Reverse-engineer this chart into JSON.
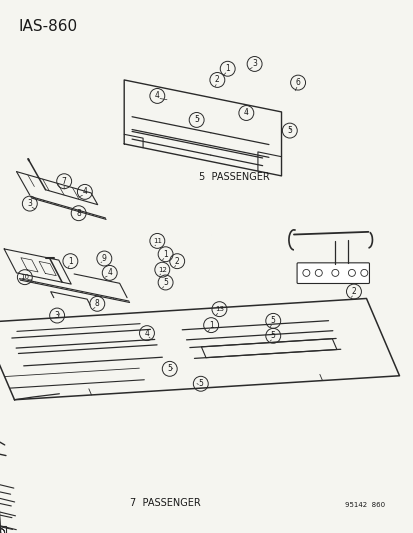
{
  "title": "IAS-860",
  "bg_color": "#f5f5f0",
  "line_color": "#2a2a2a",
  "text_color": "#1a1a1a",
  "label_5pass": "5  PASSENGER",
  "label_7pass": "7  PASSENGER",
  "footer_code": "95142  860",
  "figsize": [
    4.14,
    5.33
  ],
  "dpi": 100,
  "title_fontsize": 11,
  "label_fontsize": 7,
  "circle_r": 0.018,
  "circle_lw": 0.7,
  "circle_fontsize": 5.5
}
